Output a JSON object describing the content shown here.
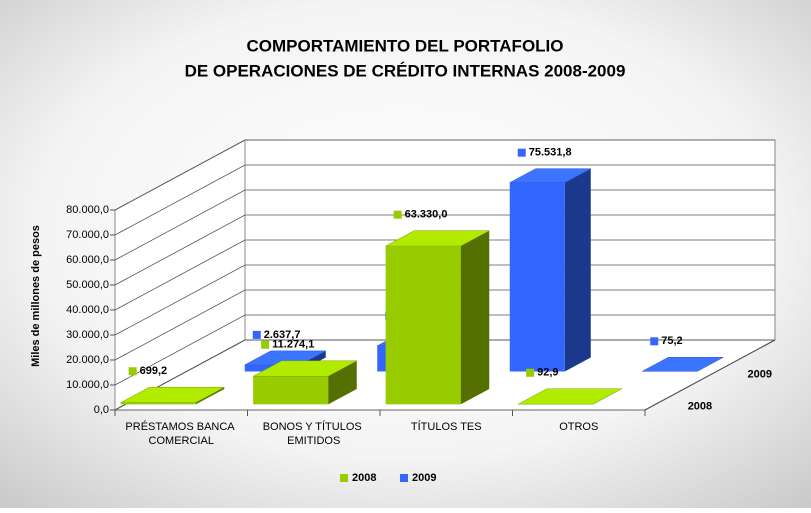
{
  "chart_data": {
    "type": "bar3d",
    "title": [
      "COMPORTAMIENTO DEL PORTAFOLIO",
      "DE OPERACIONES DE CRÉDITO INTERNAS 2008-2009"
    ],
    "y_label": "Miles de millones de pesos",
    "categories": [
      "PRÉSTAMOS BANCA COMERCIAL",
      "BONOS Y TÍTULOS EMITIDOS",
      "TÍTULOS TES",
      "OTROS"
    ],
    "series": [
      {
        "name": "2008",
        "color": "#99cc00",
        "values": [
          699.2,
          11274.1,
          63330.0,
          92.9
        ],
        "value_labels": [
          "699,2",
          "11.274,1",
          "63.330,0",
          "92,9"
        ]
      },
      {
        "name": "2009",
        "color": "#3366ff",
        "values": [
          2637.7,
          10279.2,
          75531.8,
          75.2
        ],
        "value_labels": [
          "2.637,7",
          "10.279,2",
          "75.531,8",
          "75,2"
        ]
      }
    ],
    "ylim": [
      0,
      80000
    ],
    "yticks": [
      {
        "value": 0,
        "label": "0,0"
      },
      {
        "value": 10000,
        "label": "10.000,0"
      },
      {
        "value": 20000,
        "label": "20.000,0"
      },
      {
        "value": 30000,
        "label": "30.000,0"
      },
      {
        "value": 40000,
        "label": "40.000,0"
      },
      {
        "value": 50000,
        "label": "50.000,0"
      },
      {
        "value": 60000,
        "label": "60.000,0"
      },
      {
        "value": 70000,
        "label": "70.000,0"
      },
      {
        "value": 80000,
        "label": "80.000,0"
      }
    ],
    "grid": true,
    "legend": "bottom"
  }
}
